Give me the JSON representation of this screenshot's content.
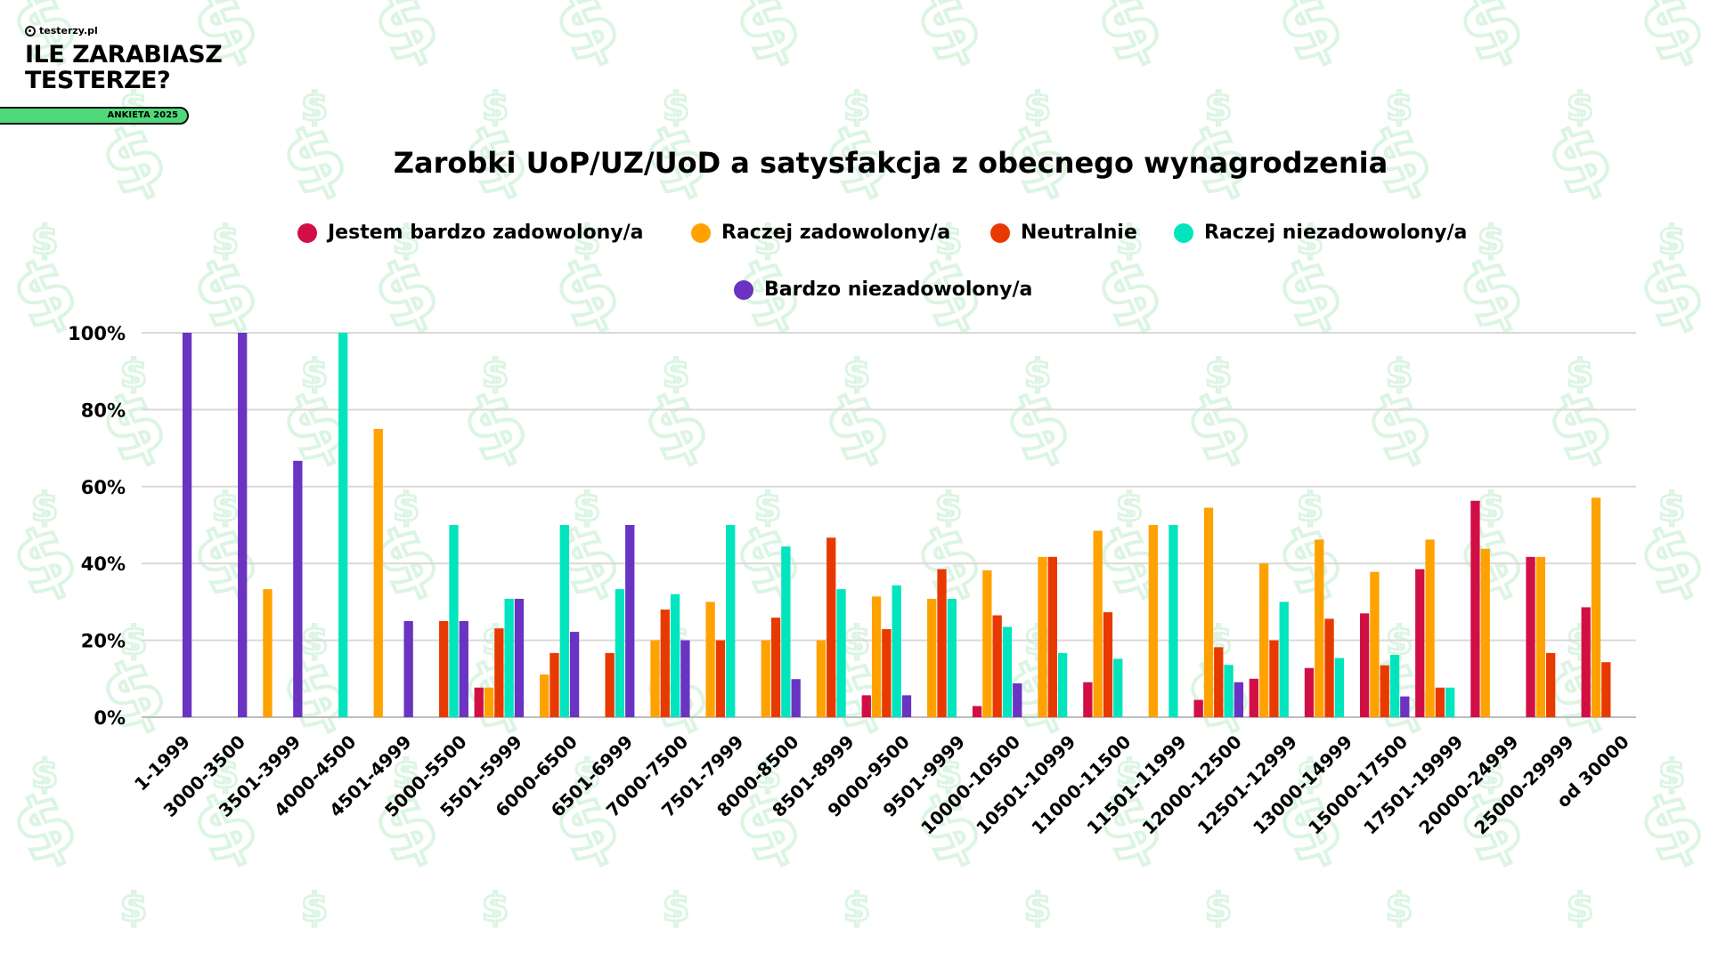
{
  "brand": {
    "site": "testerzy.pl",
    "title_line1": "ILE ZARABIASZ",
    "title_line2": "TESTERZE?",
    "badge": "ANKIETA 2025",
    "badge_color": "#4fd97a"
  },
  "chart_data": {
    "type": "bar",
    "title": "Zarobki UoP/UZ/UoD a satysfakcja z obecnego wynagrodzenia",
    "xlabel": "",
    "ylabel": "",
    "ylim": [
      0,
      100
    ],
    "yticks": [
      "0%",
      "20%",
      "40%",
      "60%",
      "80%",
      "100%"
    ],
    "grid": true,
    "legend_position": "top",
    "categories": [
      "1-1999",
      "3000-3500",
      "3501-3999",
      "4000-4500",
      "4501-4999",
      "5000-5500",
      "5501-5999",
      "6000-6500",
      "6501-6999",
      "7000-7500",
      "7501-7999",
      "8000-8500",
      "8501-8999",
      "9000-9500",
      "9501-9999",
      "10000-10500",
      "10501-10999",
      "11000-11500",
      "11501-11999",
      "12000-12500",
      "12501-12999",
      "13000-14999",
      "15000-17500",
      "17501-19999",
      "20000-24999",
      "25000-29999",
      "od 30000"
    ],
    "series": [
      {
        "name": "Jestem bardzo zadowolony/a",
        "color": "#d20f45",
        "values": [
          0,
          0,
          0,
          0,
          0,
          0,
          7.7,
          0,
          0,
          0,
          0,
          0,
          0,
          5.7,
          0,
          2.9,
          0,
          9.1,
          0,
          4.5,
          10,
          12.8,
          27,
          38.5,
          56.3,
          41.7,
          28.6
        ]
      },
      {
        "name": "Raczej zadowolony/a",
        "color": "#ffa200",
        "values": [
          0,
          0,
          33.3,
          0,
          75,
          0,
          7.7,
          11.1,
          0,
          20,
          30,
          20,
          20,
          31.4,
          30.8,
          38.2,
          41.7,
          48.5,
          50,
          54.5,
          40,
          46.2,
          37.8,
          46.2,
          43.8,
          41.7,
          57.1
        ]
      },
      {
        "name": "Neutralnie",
        "color": "#e83a00",
        "values": [
          0,
          0,
          0,
          0,
          0,
          25,
          23.1,
          16.7,
          16.7,
          28,
          20,
          25.9,
          46.7,
          22.9,
          38.5,
          26.5,
          41.7,
          27.3,
          0,
          18.2,
          20,
          25.6,
          13.5,
          7.7,
          0,
          16.7,
          14.3
        ]
      },
      {
        "name": "Raczej niezadowolony/a",
        "color": "#00e5be",
        "values": [
          0,
          0,
          0,
          100,
          0,
          50,
          30.8,
          50,
          33.3,
          32,
          50,
          44.4,
          33.3,
          34.3,
          30.8,
          23.5,
          16.7,
          15.2,
          50,
          13.6,
          30,
          15.4,
          16.2,
          7.7,
          0,
          0,
          0
        ]
      },
      {
        "name": "Bardzo niezadowolony/a",
        "color": "#6a33c2",
        "values": [
          100,
          100,
          66.7,
          0,
          25,
          25,
          30.8,
          22.2,
          50,
          20,
          0,
          9.9,
          0,
          5.7,
          0,
          8.8,
          0,
          0,
          0,
          9.1,
          0,
          0,
          5.4,
          0,
          0,
          0,
          0
        ]
      }
    ]
  }
}
